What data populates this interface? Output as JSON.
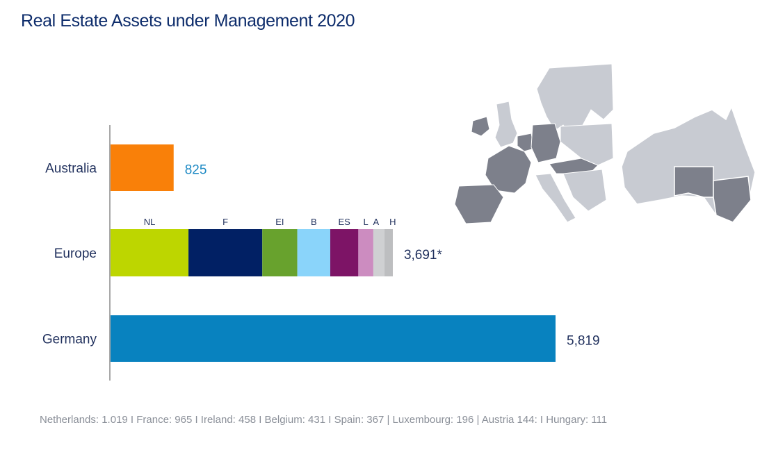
{
  "title": "Real Estate Assets under Management 2020",
  "footnote": "Netherlands: 1.019 I France: 965 I Ireland: 458 I Belgium: 431 I Spain: 367 | Luxembourg: 196 | Austria 144: I Hungary: 111",
  "chart_data": {
    "type": "bar",
    "orientation": "horizontal",
    "stacked": true,
    "categories": [
      "Australia",
      "Europe",
      "Germany"
    ],
    "totals_labels": [
      "825",
      "3,691*",
      "5,819"
    ],
    "bars": [
      {
        "category": "Australia",
        "segments": [
          {
            "label": "",
            "value": 825,
            "color": "#f98009"
          }
        ],
        "total_label_color": "#1e8ac4"
      },
      {
        "category": "Europe",
        "segments": [
          {
            "label": "NL",
            "value": 1019,
            "color": "#bdd600"
          },
          {
            "label": "F",
            "value": 965,
            "color": "#012064"
          },
          {
            "label": "EI",
            "value": 458,
            "color": "#68a22d"
          },
          {
            "label": "B",
            "value": 431,
            "color": "#8ad4fa"
          },
          {
            "label": "ES",
            "value": 367,
            "color": "#7d1466"
          },
          {
            "label": "L",
            "value": 196,
            "color": "#cc8cc0"
          },
          {
            "label": "A",
            "value": 144,
            "color": "#cfd0d2"
          },
          {
            "label": "H",
            "value": 111,
            "color": "#bdbec0"
          }
        ],
        "total_label_color": "#1f2f5c"
      },
      {
        "category": "Germany",
        "segments": [
          {
            "label": "",
            "value": 5819,
            "color": "#0882bf"
          }
        ],
        "total_label_color": "#1f2f5c"
      }
    ],
    "xlim": [
      0,
      5819
    ],
    "grid": false,
    "legend": "none"
  },
  "map": {
    "land_color": "#c8cbd2",
    "highlight_color": "#7d808b",
    "regions": [
      "Europe",
      "Australia"
    ]
  }
}
